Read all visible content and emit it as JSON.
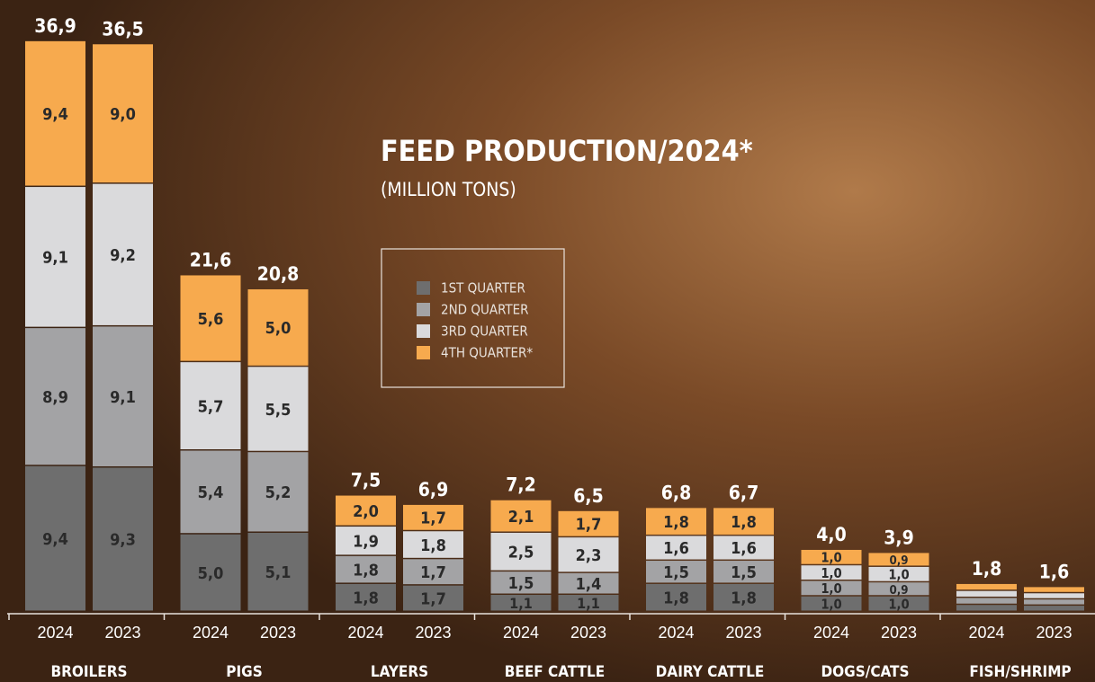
{
  "chart_data": {
    "type": "stacked_bar",
    "title": "FEED PRODUCTION/2024*",
    "subtitle": "(MILLION TONS)",
    "groups": [
      "BROILERS",
      "PIGS",
      "LAYERS",
      "BEEF CATTLE",
      "DAIRY CATTLE",
      "DOGS/CATS",
      "FISH/SHRIMP"
    ],
    "categories": [
      "2024",
      "2023",
      "2024",
      "2023",
      "2024",
      "2023",
      "2024",
      "2023",
      "2024",
      "2023",
      "2024",
      "2023",
      "2024",
      "2023"
    ],
    "series": [
      {
        "name": "1ST QUARTER",
        "color": "#6e6e6e",
        "values": [
          9.4,
          9.3,
          5.0,
          5.1,
          1.8,
          1.7,
          1.1,
          1.1,
          1.8,
          1.8,
          1.0,
          1.0,
          0.45,
          0.4
        ],
        "value_labels": [
          "9,4",
          "9,3",
          "5,0",
          "5,1",
          "1,8",
          "1,7",
          "1,1",
          "1,1",
          "1,8",
          "1,8",
          "1,0",
          "1,0",
          null,
          null
        ]
      },
      {
        "name": "2ND QUARTER",
        "color": "#a3a3a5",
        "values": [
          8.9,
          9.1,
          5.4,
          5.2,
          1.8,
          1.7,
          1.5,
          1.4,
          1.5,
          1.5,
          1.0,
          0.9,
          0.45,
          0.4
        ],
        "value_labels": [
          "8,9",
          "9,1",
          "5,4",
          "5,2",
          "1,8",
          "1,7",
          "1,5",
          "1,4",
          "1,5",
          "1,5",
          "1,0",
          "0,9",
          null,
          null
        ]
      },
      {
        "name": "3RD QUARTER",
        "color": "#dadadc",
        "values": [
          9.1,
          9.2,
          5.7,
          5.5,
          1.9,
          1.8,
          2.5,
          2.3,
          1.6,
          1.6,
          1.0,
          1.0,
          0.45,
          0.4
        ],
        "value_labels": [
          "9,1",
          "9,2",
          "5,7",
          "5,5",
          "1,9",
          "1,8",
          "2,5",
          "2,3",
          "1,6",
          "1,6",
          "1,0",
          "1,0",
          null,
          null
        ]
      },
      {
        "name": "4TH QUARTER*",
        "color": "#f7aa4e",
        "values": [
          9.4,
          9.0,
          5.6,
          5.0,
          2.0,
          1.7,
          2.1,
          1.7,
          1.8,
          1.8,
          1.0,
          0.9,
          0.45,
          0.4
        ],
        "value_labels": [
          "9,4",
          "9,0",
          "5,6",
          "5,0",
          "2,0",
          "1,7",
          "2,1",
          "1,7",
          "1,8",
          "1,8",
          "1,0",
          "0,9",
          null,
          null
        ]
      }
    ],
    "totals": [
      36.9,
      36.5,
      21.6,
      20.8,
      7.5,
      6.9,
      7.2,
      6.5,
      6.8,
      6.7,
      4.0,
      3.9,
      1.8,
      1.6
    ],
    "total_labels": [
      "36,9",
      "36,5",
      "21,6",
      "20,8",
      "7,5",
      "6,9",
      "7,2",
      "6,5",
      "6,8",
      "6,7",
      "4,0",
      "3,9",
      "1,8",
      "1,6"
    ]
  }
}
